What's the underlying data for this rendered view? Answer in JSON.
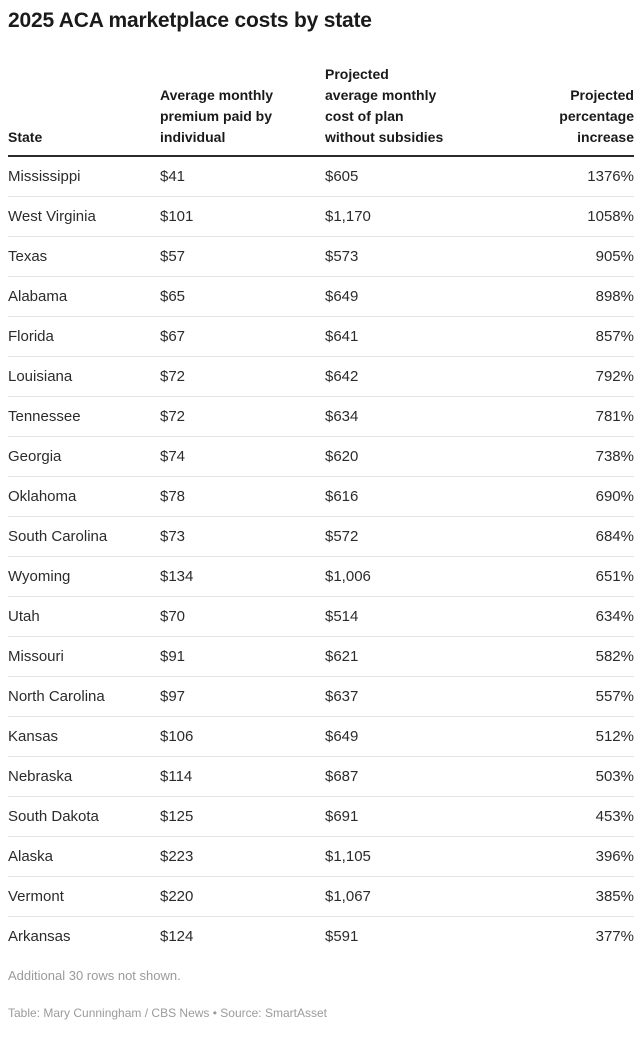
{
  "title": "2025 ACA marketplace costs by state",
  "chart_data": {
    "type": "table",
    "title": "2025 ACA marketplace costs by state",
    "columns": [
      {
        "label": "State",
        "align": "left"
      },
      {
        "label": "Average monthly\npremium paid by\nindividual",
        "align": "left"
      },
      {
        "label": "Projected\naverage monthly\ncost of plan\nwithout subsidies",
        "align": "left"
      },
      {
        "label": "Projected\npercentage\nincrease",
        "align": "right"
      }
    ],
    "rows": [
      [
        "Mississippi",
        "$41",
        "$605",
        "1376%"
      ],
      [
        "West Virginia",
        "$101",
        "$1,170",
        "1058%"
      ],
      [
        "Texas",
        "$57",
        "$573",
        "905%"
      ],
      [
        "Alabama",
        "$65",
        "$649",
        "898%"
      ],
      [
        "Florida",
        "$67",
        "$641",
        "857%"
      ],
      [
        "Louisiana",
        "$72",
        "$642",
        "792%"
      ],
      [
        "Tennessee",
        "$72",
        "$634",
        "781%"
      ],
      [
        "Georgia",
        "$74",
        "$620",
        "738%"
      ],
      [
        "Oklahoma",
        "$78",
        "$616",
        "690%"
      ],
      [
        "South Carolina",
        "$73",
        "$572",
        "684%"
      ],
      [
        "Wyoming",
        "$134",
        "$1,006",
        "651%"
      ],
      [
        "Utah",
        "$70",
        "$514",
        "634%"
      ],
      [
        "Missouri",
        "$91",
        "$621",
        "582%"
      ],
      [
        "North Carolina",
        "$97",
        "$637",
        "557%"
      ],
      [
        "Kansas",
        "$106",
        "$649",
        "512%"
      ],
      [
        "Nebraska",
        "$114",
        "$687",
        "503%"
      ],
      [
        "South Dakota",
        "$125",
        "$691",
        "453%"
      ],
      [
        "Alaska",
        "$223",
        "$1,105",
        "396%"
      ],
      [
        "Vermont",
        "$220",
        "$1,067",
        "385%"
      ],
      [
        "Arkansas",
        "$124",
        "$591",
        "377%"
      ]
    ]
  },
  "footer": {
    "note": "Additional 30 rows not shown.",
    "credit": "Table: Mary Cunningham / CBS News • Source: SmartAsset"
  },
  "colors": {
    "background": "#ffffff",
    "title_text": "#1a1a1a",
    "header_text": "#1a1a1a",
    "header_rule": "#2b2b2b",
    "body_text": "#2b2b2b",
    "row_divider": "#e4e4e4",
    "muted_text": "#9b9b9b"
  }
}
